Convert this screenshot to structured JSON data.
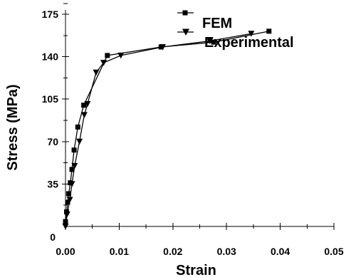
{
  "chart_data": {
    "type": "line",
    "title": "",
    "xlabel": "Strain",
    "ylabel": "Stress (MPa)",
    "xlim": [
      0,
      0.05
    ],
    "ylim": [
      0,
      175
    ],
    "xticks": [
      0.0,
      0.01,
      0.02,
      0.03,
      0.04,
      0.05
    ],
    "xtick_labels": [
      "0.00",
      "0.01",
      "0.02",
      "0.03",
      "0.04",
      "0.05"
    ],
    "yticks": [
      0,
      35,
      70,
      105,
      140,
      175
    ],
    "ytick_labels": [
      "0",
      "35",
      "70",
      "105",
      "140",
      "175"
    ],
    "grid": false,
    "legend_position": "top-center",
    "series": [
      {
        "name": "FEM",
        "marker": "square",
        "x": [
          0.0,
          0.0002,
          0.0004,
          0.0006,
          0.0009,
          0.0012,
          0.0016,
          0.0023,
          0.0034,
          0.0078,
          0.0178,
          0.0276,
          0.0379
        ],
        "y": [
          4,
          12,
          20,
          27,
          36,
          47,
          63,
          82,
          100,
          141,
          148,
          152,
          161
        ]
      },
      {
        "name": "Experimental",
        "marker": "triangle-down",
        "x": [
          0.0,
          0.0003,
          0.0008,
          0.0012,
          0.0017,
          0.0026,
          0.0035,
          0.0041,
          0.0057,
          0.0071,
          0.0103,
          0.0181,
          0.0269,
          0.0346
        ],
        "y": [
          0,
          10,
          22,
          35,
          50,
          70,
          92,
          101,
          127,
          135,
          141,
          148,
          153,
          159
        ]
      }
    ]
  },
  "colors": {
    "background": "#ffffff",
    "ink": "#000000"
  }
}
